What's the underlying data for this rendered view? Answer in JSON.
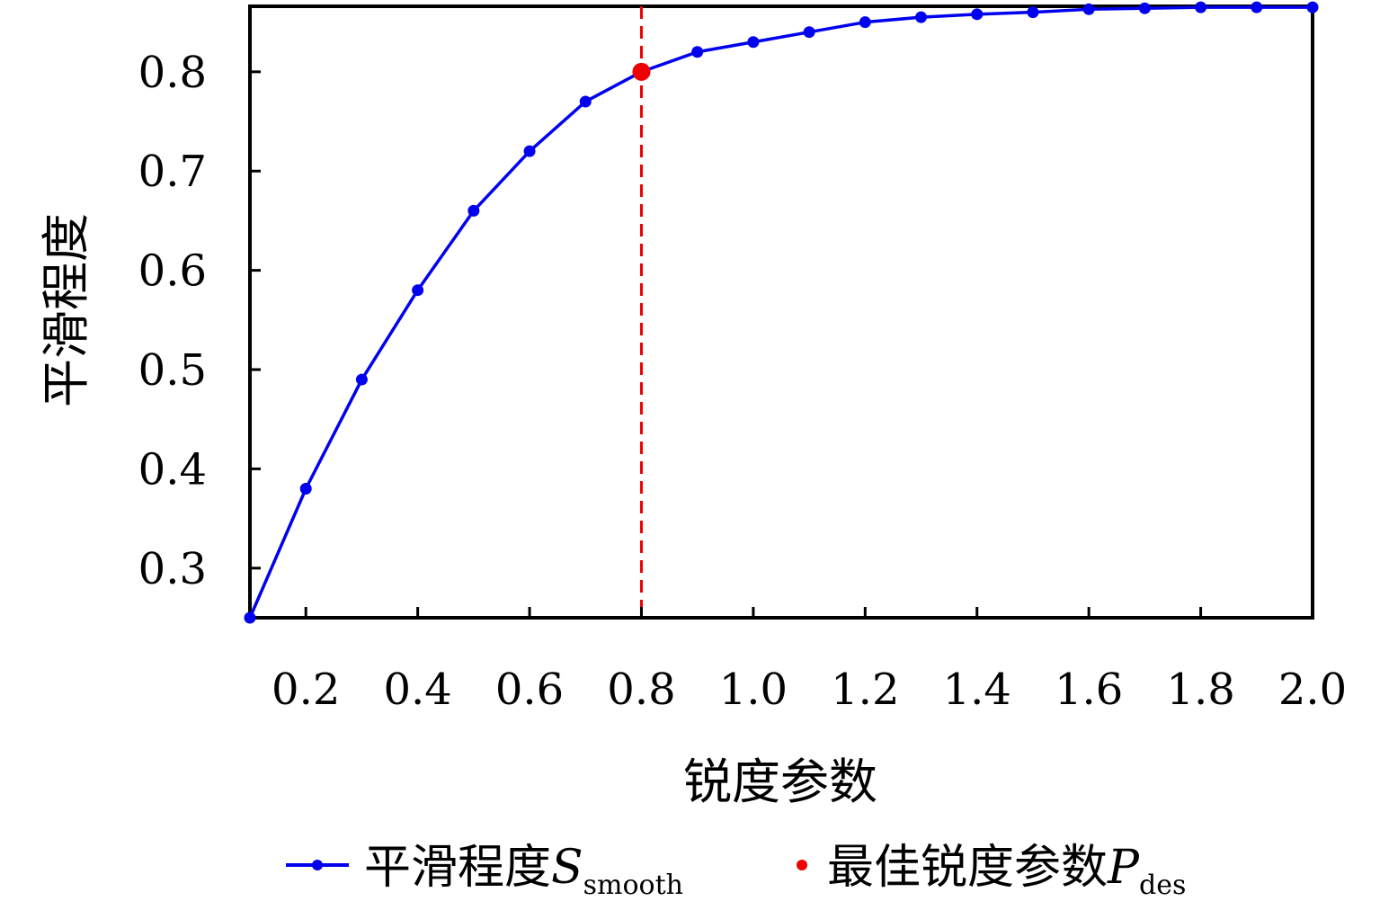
{
  "chart_data": {
    "type": "line",
    "xlabel": "锐度参数",
    "ylabel": "平滑程度",
    "xlim": [
      0.1,
      2.0
    ],
    "ylim": [
      0.25,
      0.866
    ],
    "xticks": [
      0.2,
      0.4,
      0.6,
      0.8,
      1.0,
      1.2,
      1.4,
      1.6,
      1.8,
      2.0
    ],
    "xtick_labels": [
      "0.2",
      "0.4",
      "0.6",
      "0.8",
      "1.0",
      "1.2",
      "1.4",
      "1.6",
      "1.8",
      "2.0"
    ],
    "yticks": [
      0.3,
      0.4,
      0.5,
      0.6,
      0.7,
      0.8
    ],
    "ytick_labels": [
      "0.3",
      "0.4",
      "0.5",
      "0.6",
      "0.7",
      "0.8"
    ],
    "grid": false,
    "legend_position": "bottom-center",
    "series": [
      {
        "name": "平滑程度",
        "name_italic": "S",
        "name_sub": "smooth",
        "color": "#0000ee",
        "x": [
          0.1,
          0.2,
          0.3,
          0.4,
          0.5,
          0.6,
          0.7,
          0.8,
          0.9,
          1.0,
          1.1,
          1.2,
          1.3,
          1.4,
          1.5,
          1.6,
          1.7,
          1.8,
          1.9,
          2.0
        ],
        "y": [
          0.25,
          0.38,
          0.49,
          0.58,
          0.66,
          0.72,
          0.77,
          0.8,
          0.82,
          0.83,
          0.84,
          0.85,
          0.855,
          0.858,
          0.86,
          0.863,
          0.864,
          0.865,
          0.865,
          0.865
        ]
      }
    ],
    "optimal_point": {
      "name": "最佳锐度参数",
      "name_italic": "P",
      "name_sub": "des",
      "x": 0.8,
      "y": 0.8,
      "color": "#ee0000"
    }
  }
}
